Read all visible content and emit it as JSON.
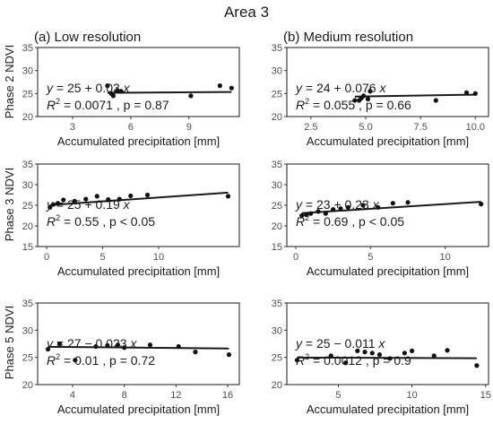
{
  "figure": {
    "title": "Area 3",
    "column_titles": [
      "(a) Low resolution",
      "(b) Medium resolution"
    ],
    "row_labels": [
      "Phase 2 NDVI",
      "Phase 3 NDVI",
      "Phase 5 NDVI"
    ],
    "xlabel": "Accumulated precipitation [mm]"
  },
  "chart_data": [
    {
      "type": "scatter",
      "panel": "phase2-low",
      "row": 0,
      "col": 0,
      "xlabel": "Accumulated precipitation [mm]",
      "ylabel": "Phase 2 NDVI",
      "xlim": [
        1.2,
        11.6
      ],
      "ylim": [
        20,
        35
      ],
      "xticks": [
        3,
        6,
        9
      ],
      "yticks": [
        20,
        25,
        30,
        35
      ],
      "x": [
        4.8,
        5.0,
        5.1,
        5.3,
        5.5,
        9.1,
        10.6,
        11.2
      ],
      "y": [
        26.7,
        25.0,
        24.5,
        25.6,
        25.5,
        24.5,
        26.7,
        26.2
      ],
      "fit": {
        "intercept": 25,
        "slope": 0.03,
        "x_range": [
          4.8,
          11.2
        ]
      },
      "equation": {
        "intercept": "25",
        "op": "+",
        "coef": "0.03",
        "r2": "0.0071",
        "p": "p = 0.87"
      }
    },
    {
      "type": "scatter",
      "panel": "phase2-medium",
      "row": 0,
      "col": 1,
      "xlabel": "Accumulated precipitation [mm]",
      "ylabel": "",
      "xlim": [
        1.4,
        10.6
      ],
      "ylim": [
        20,
        35
      ],
      "xticks": [
        2.5,
        5.0,
        7.5,
        10.0
      ],
      "xtick_labels": [
        "2.5",
        "5.0",
        "7.5",
        "10.0"
      ],
      "yticks": [
        20,
        25,
        30,
        35
      ],
      "x": [
        4.5,
        4.7,
        4.8,
        4.9,
        5.1,
        5.2,
        8.2,
        9.6,
        10.0
      ],
      "y": [
        23.5,
        23.5,
        24.0,
        24.5,
        23.8,
        25.5,
        23.5,
        25.2,
        25.0
      ],
      "fit": {
        "intercept": 24,
        "slope": 0.076,
        "x_range": [
          4.5,
          10.0
        ]
      },
      "equation": {
        "intercept": "24",
        "op": "+",
        "coef": "0.076",
        "r2": "0.055",
        "p": "p = 0.66"
      }
    },
    {
      "type": "scatter",
      "panel": "phase3-low",
      "row": 1,
      "col": 0,
      "xlabel": "Accumulated precipitation [mm]",
      "ylabel": "Phase 3 NDVI",
      "xlim": [
        -0.8,
        17.2
      ],
      "ylim": [
        15,
        35
      ],
      "xticks": [
        0,
        5,
        10
      ],
      "yticks": [
        15,
        20,
        25,
        30,
        35
      ],
      "x": [
        0.3,
        0.6,
        1.0,
        1.5,
        2.5,
        3.5,
        4.5,
        5.5,
        6.5,
        7.5,
        9.0,
        16.2
      ],
      "y": [
        24.5,
        25.2,
        25.5,
        26.3,
        26.0,
        26.5,
        27.2,
        26.4,
        26.5,
        27.3,
        27.5,
        27.2
      ],
      "fit": {
        "intercept": 25,
        "slope": 0.19,
        "x_range": [
          0.3,
          16.2
        ]
      },
      "equation": {
        "intercept": "25",
        "op": "+",
        "coef": "0.19",
        "r2": "0.55",
        "p": "p < 0.05"
      }
    },
    {
      "type": "scatter",
      "panel": "phase3-medium",
      "row": 1,
      "col": 1,
      "xlabel": "Accumulated precipitation [mm]",
      "ylabel": "",
      "xlim": [
        -0.6,
        12.9
      ],
      "ylim": [
        15,
        35
      ],
      "xticks": [
        0,
        5,
        10
      ],
      "yticks": [
        15,
        20,
        25,
        30,
        35
      ],
      "x": [
        0.4,
        0.7,
        1.0,
        1.5,
        2.0,
        2.5,
        3.0,
        3.5,
        4.5,
        5.5,
        6.5,
        7.5,
        12.4
      ],
      "y": [
        22.5,
        22.7,
        23.0,
        23.5,
        23.0,
        24.0,
        24.2,
        24.5,
        25.0,
        24.5,
        25.5,
        25.7,
        25.3
      ],
      "fit": {
        "intercept": 23,
        "slope": 0.23,
        "x_range": [
          0.4,
          12.4
        ]
      },
      "equation": {
        "intercept": "23",
        "op": "+",
        "coef": "0.23",
        "r2": "0.69",
        "p": "p < 0.05"
      }
    },
    {
      "type": "scatter",
      "panel": "phase5-low",
      "row": 2,
      "col": 0,
      "xlabel": "Accumulated precipitation [mm]",
      "ylabel": "Phase 5 NDVI",
      "xlim": [
        1.3,
        16.9
      ],
      "ylim": [
        20,
        35
      ],
      "xticks": [
        4,
        8,
        12,
        16
      ],
      "yticks": [
        20,
        25,
        30,
        35
      ],
      "x": [
        2.1,
        3.0,
        4.2,
        5.8,
        6.7,
        7.5,
        8.0,
        10.0,
        12.2,
        13.5,
        16.1
      ],
      "y": [
        26.5,
        27.5,
        24.5,
        27.0,
        27.2,
        27.3,
        26.8,
        27.3,
        27.0,
        26.0,
        25.5
      ],
      "fit": {
        "intercept": 27,
        "slope": -0.023,
        "x_range": [
          2.1,
          16.1
        ]
      },
      "equation": {
        "intercept": "27",
        "op": "−",
        "coef": "0.023",
        "r2": "0.01",
        "p": "p = 0.72"
      }
    },
    {
      "type": "scatter",
      "panel": "phase5-medium",
      "row": 2,
      "col": 1,
      "xlabel": "Accumulated precipitation [mm]",
      "ylabel": "",
      "xlim": [
        1.5,
        15.2
      ],
      "ylim": [
        20,
        35
      ],
      "xticks": [
        5,
        10,
        15
      ],
      "yticks": [
        20,
        25,
        30,
        35
      ],
      "x": [
        2.2,
        4.5,
        5.5,
        6.3,
        6.8,
        7.3,
        7.8,
        8.5,
        9.5,
        10.0,
        11.5,
        12.4,
        14.4
      ],
      "y": [
        24.5,
        25.3,
        24.0,
        26.2,
        26.0,
        25.8,
        25.5,
        24.8,
        25.8,
        26.2,
        25.3,
        26.3,
        23.5
      ],
      "fit": {
        "intercept": 25,
        "slope": -0.011,
        "x_range": [
          2.2,
          14.4
        ]
      },
      "equation": {
        "intercept": "25",
        "op": "−",
        "coef": "0.011",
        "r2": "0.0012",
        "p": "p = 0.9"
      }
    }
  ]
}
